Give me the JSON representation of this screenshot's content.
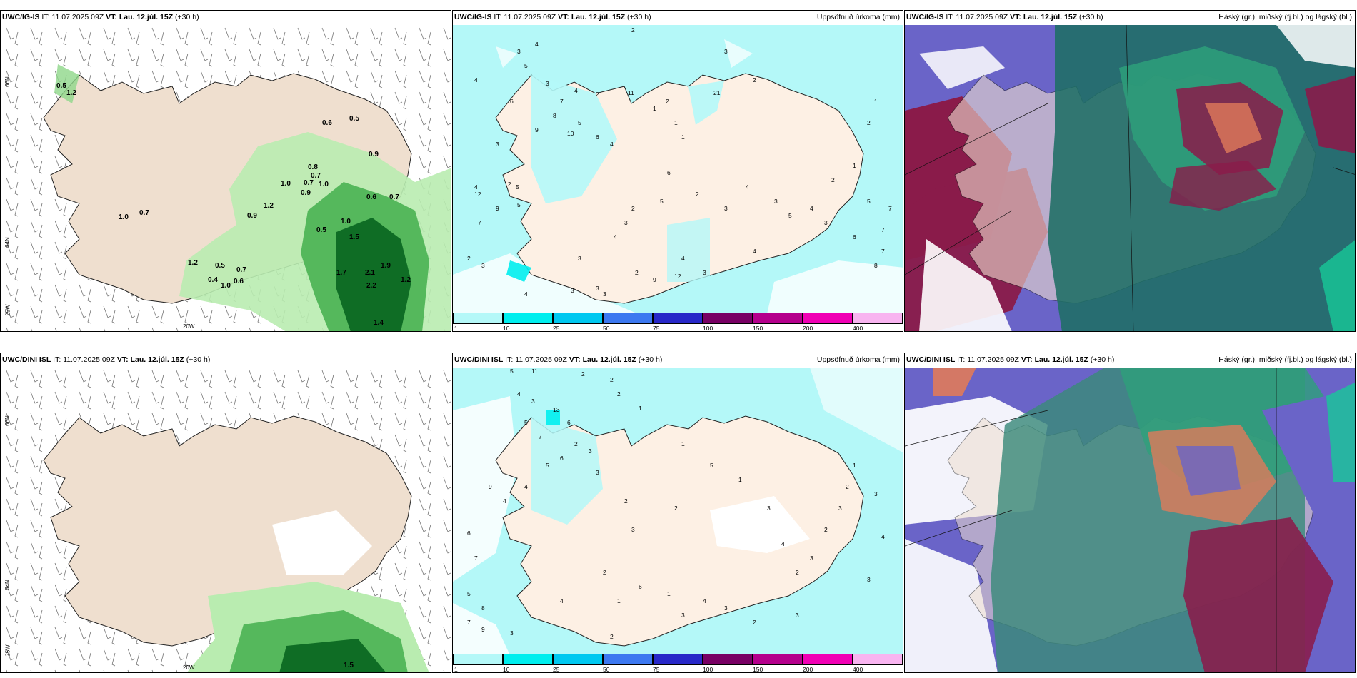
{
  "rows": [
    {
      "model": "UWC/IG-IS",
      "panels": [
        {
          "it_label": "IT:",
          "it": "11.07.2025 09Z",
          "vt_label": "VT:",
          "vt": "Lau. 12.júl. 15Z",
          "lead": "(+30 h)",
          "right": ""
        },
        {
          "it_label": "IT:",
          "it": "11.07.2025 09Z",
          "vt_label": "VT:",
          "vt": "Lau. 12.júl. 15Z",
          "lead": "(+30 h)",
          "right": "Uppsöfnuð úrkoma (mm)"
        },
        {
          "it_label": "IT:",
          "it": "11.07.2025 09Z",
          "vt_label": "VT:",
          "vt": "Lau. 12.júl. 15Z",
          "lead": "(+30 h)",
          "right": "Háský (gr.), miðský (fj.bl.) og lágský (bl.)"
        }
      ]
    },
    {
      "model": "UWC/DINI ISL",
      "panels": [
        {
          "it_label": "IT:",
          "it": "11.07.2025 09Z",
          "vt_label": "VT:",
          "vt": "Lau. 12.júl. 15Z",
          "lead": "(+30 h)",
          "right": ""
        },
        {
          "it_label": "IT:",
          "it": "11.07.2025 09Z",
          "vt_label": "VT:",
          "vt": "Lau. 12.júl. 15Z",
          "lead": "(+30 h)",
          "right": "Uppsöfnuð úrkoma (mm)"
        },
        {
          "it_label": "IT:",
          "it": "11.07.2025 09Z",
          "vt_label": "VT:",
          "vt": "Lau. 12.júl. 15Z",
          "lead": "(+30 h)",
          "right": "Háský (gr.), miðský (fj.bl.) og lágský (bl.)"
        }
      ]
    }
  ],
  "grid_labels": {
    "lat66": "66N",
    "lat64": "64N",
    "lon20": "20W",
    "lon25": "25W"
  },
  "colorbar": {
    "ticks": [
      "1",
      "10",
      "25",
      "50",
      "75",
      "100",
      "150",
      "200",
      "400"
    ],
    "colors": [
      "#b4f8f8",
      "#00eeee",
      "#00c8f0",
      "#3c78f0",
      "#2828c8",
      "#780064",
      "#b4008c",
      "#f000b4",
      "#f8b4f0"
    ]
  },
  "rain_labels_top": [
    "0.5",
    "1.2",
    "0.6",
    "0.5",
    "0.9",
    "0.8",
    "0.7",
    "1.0",
    "1.0",
    "0.7",
    "1.0",
    "0.7",
    "0.9",
    "1.2",
    "0.6",
    "0.7",
    "0.9",
    "1.0",
    "0.5",
    "1.2",
    "0.7",
    "0.6",
    "0.5",
    "1.0",
    "0.4",
    "1.7",
    "2.1",
    "1.9",
    "1.2",
    "1.4",
    "1.5",
    "2.2"
  ],
  "precip_labels_top": [
    "3",
    "4",
    "2",
    "4",
    "5",
    "6",
    "3",
    "7",
    "4",
    "2",
    "11",
    "8",
    "5",
    "9",
    "10",
    "6",
    "4",
    "3",
    "1",
    "2",
    "21",
    "3",
    "2",
    "1",
    "1",
    "4",
    "5",
    "12",
    "12",
    "9",
    "5",
    "7",
    "3",
    "2",
    "4",
    "3",
    "3",
    "2",
    "3",
    "4",
    "5",
    "6",
    "2",
    "3",
    "4",
    "3",
    "5",
    "4",
    "3",
    "2",
    "1",
    "4",
    "4",
    "12",
    "3",
    "9",
    "3",
    "2",
    "3",
    "2",
    "1",
    "7",
    "5",
    "6",
    "7",
    "8",
    "7"
  ],
  "precip_labels_bottom": [
    "5",
    "11",
    "2",
    "2",
    "2",
    "4",
    "3",
    "5",
    "7",
    "13",
    "6",
    "1",
    "2",
    "3",
    "6",
    "5",
    "3",
    "9",
    "7",
    "6",
    "4",
    "4",
    "2",
    "3",
    "2",
    "5",
    "1",
    "1",
    "3",
    "4",
    "2",
    "3",
    "2",
    "3",
    "2",
    "1",
    "4",
    "3",
    "5",
    "8",
    "7",
    "9",
    "3",
    "4",
    "2",
    "1",
    "6",
    "1",
    "3",
    "4",
    "3",
    "2",
    "3",
    "3",
    "2"
  ]
}
